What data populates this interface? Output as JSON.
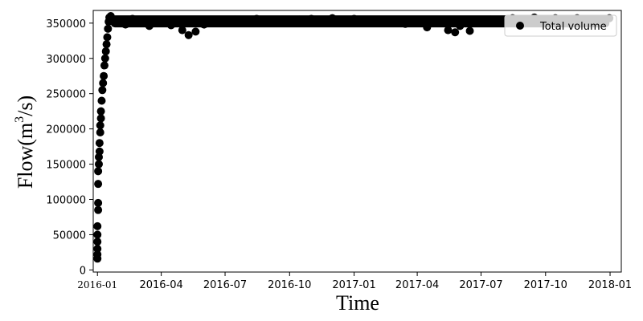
{
  "chart_data": {
    "type": "scatter",
    "title": "",
    "xlabel": "Time",
    "ylabel_main": "Flow(m",
    "ylabel_sup": "3",
    "ylabel_tail": "/s)",
    "xlim": [
      "2015-12-26",
      "2018-01-17"
    ],
    "ylim": [
      -3000,
      368000
    ],
    "grid": false,
    "legend": {
      "placement": "top-right",
      "entries": [
        {
          "label": "Total volume",
          "color": "#000000"
        }
      ]
    },
    "series_color": "#000000",
    "x_ticks": [
      {
        "date": "2016-01-01",
        "label": "2016-01"
      },
      {
        "date": "2016-04-01",
        "label": "2016-04"
      },
      {
        "date": "2016-07-01",
        "label": "2016-07"
      },
      {
        "date": "2016-10-01",
        "label": "2016-10"
      },
      {
        "date": "2017-01-01",
        "label": "2017-01"
      },
      {
        "date": "2017-04-01",
        "label": "2017-04"
      },
      {
        "date": "2017-07-01",
        "label": "2017-07"
      },
      {
        "date": "2017-10-01",
        "label": "2017-10"
      },
      {
        "date": "2018-01-01",
        "label": "2018-01"
      }
    ],
    "y_ticks": [
      0,
      50000,
      100000,
      150000,
      200000,
      250000,
      300000,
      350000
    ],
    "series": [
      {
        "name": "Total volume",
        "points": [
          [
            "2016-01-01",
            16000
          ],
          [
            "2016-01-01",
            22000
          ],
          [
            "2016-01-01",
            30000
          ],
          [
            "2016-01-01",
            40000
          ],
          [
            "2016-01-01",
            50000
          ],
          [
            "2016-01-01",
            62000
          ],
          [
            "2016-01-02",
            85000
          ],
          [
            "2016-01-02",
            95000
          ],
          [
            "2016-01-02",
            122000
          ],
          [
            "2016-01-02",
            140000
          ],
          [
            "2016-01-03",
            150000
          ],
          [
            "2016-01-03",
            160000
          ],
          [
            "2016-01-04",
            168000
          ],
          [
            "2016-01-04",
            180000
          ],
          [
            "2016-01-05",
            195000
          ],
          [
            "2016-01-05",
            205000
          ],
          [
            "2016-01-06",
            215000
          ],
          [
            "2016-01-06",
            225000
          ],
          [
            "2016-01-07",
            240000
          ],
          [
            "2016-01-08",
            255000
          ],
          [
            "2016-01-09",
            265000
          ],
          [
            "2016-01-10",
            275000
          ],
          [
            "2016-01-11",
            290000
          ],
          [
            "2016-01-12",
            300000
          ],
          [
            "2016-01-13",
            310000
          ],
          [
            "2016-01-14",
            320000
          ],
          [
            "2016-01-15",
            330000
          ],
          [
            "2016-01-16",
            342000
          ],
          [
            "2016-01-17",
            352000
          ],
          [
            "2016-01-18",
            358000
          ],
          [
            "2016-01-19",
            355000
          ],
          [
            "2016-01-20",
            360000
          ],
          [
            "2016-02-01",
            354000
          ],
          [
            "2016-02-10",
            348000
          ],
          [
            "2016-02-20",
            356000
          ],
          [
            "2016-03-01",
            352000
          ],
          [
            "2016-03-15",
            346000
          ],
          [
            "2016-04-01",
            351000
          ],
          [
            "2016-04-15",
            347000
          ],
          [
            "2016-05-01",
            340000
          ],
          [
            "2016-05-10",
            333000
          ],
          [
            "2016-05-20",
            338000
          ],
          [
            "2016-06-01",
            348000
          ],
          [
            "2016-06-15",
            352000
          ],
          [
            "2016-07-01",
            350000
          ],
          [
            "2016-07-15",
            355000
          ],
          [
            "2016-08-01",
            353000
          ],
          [
            "2016-08-15",
            356000
          ],
          [
            "2016-09-01",
            352000
          ],
          [
            "2016-09-15",
            354000
          ],
          [
            "2016-10-01",
            351000
          ],
          [
            "2016-10-15",
            355000
          ],
          [
            "2016-11-01",
            356000
          ],
          [
            "2016-11-15",
            353000
          ],
          [
            "2016-12-01",
            357000
          ],
          [
            "2016-12-15",
            354000
          ],
          [
            "2017-01-01",
            356000
          ],
          [
            "2017-01-15",
            352000
          ],
          [
            "2017-02-01",
            354000
          ],
          [
            "2017-02-15",
            350000
          ],
          [
            "2017-03-01",
            352000
          ],
          [
            "2017-03-15",
            349000
          ],
          [
            "2017-04-01",
            351000
          ],
          [
            "2017-04-15",
            344000
          ],
          [
            "2017-05-01",
            350000
          ],
          [
            "2017-05-15",
            340000
          ],
          [
            "2017-05-25",
            337000
          ],
          [
            "2017-06-01",
            346000
          ],
          [
            "2017-06-15",
            339000
          ],
          [
            "2017-07-01",
            352000
          ],
          [
            "2017-07-15",
            355000
          ],
          [
            "2017-08-01",
            350000
          ],
          [
            "2017-08-15",
            357000
          ],
          [
            "2017-09-01",
            355000
          ],
          [
            "2017-09-15",
            358000
          ],
          [
            "2017-10-01",
            356000
          ],
          [
            "2017-10-15",
            357000
          ],
          [
            "2017-11-01",
            355000
          ],
          [
            "2017-11-15",
            357000
          ],
          [
            "2017-12-01",
            354000
          ],
          [
            "2017-12-15",
            356000
          ],
          [
            "2017-12-31",
            357000
          ]
        ],
        "band": {
          "start": "2016-01-20",
          "end": "2017-12-31",
          "upper": 361000,
          "lower": 344000
        }
      }
    ]
  }
}
